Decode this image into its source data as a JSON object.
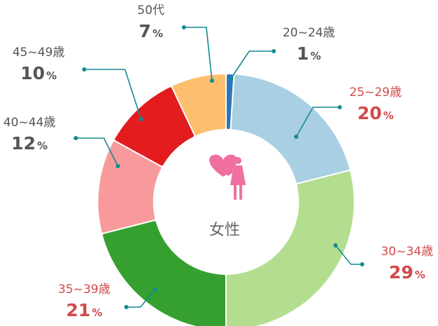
{
  "chart_data": {
    "type": "pie",
    "style": "donut",
    "center_label": "女性",
    "center_icon": "heart-woman-icon",
    "percent_sign": "%",
    "categories": [
      "20~24歳",
      "25~29歳",
      "30~34歳",
      "35~39歳",
      "40~44歳",
      "45~49歳",
      "50代"
    ],
    "values": [
      1,
      20,
      29,
      21,
      12,
      10,
      7
    ],
    "slice_colors": [
      "#2e75b6",
      "#a9cfe3",
      "#b3de8f",
      "#35a02f",
      "#f89a9c",
      "#e31c1e",
      "#fdbf6f"
    ],
    "label_colors": [
      "#555555",
      "#d24a4a",
      "#d24a4a",
      "#d24a4a",
      "#555555",
      "#555555",
      "#555555"
    ],
    "line_color": "#138a92"
  }
}
